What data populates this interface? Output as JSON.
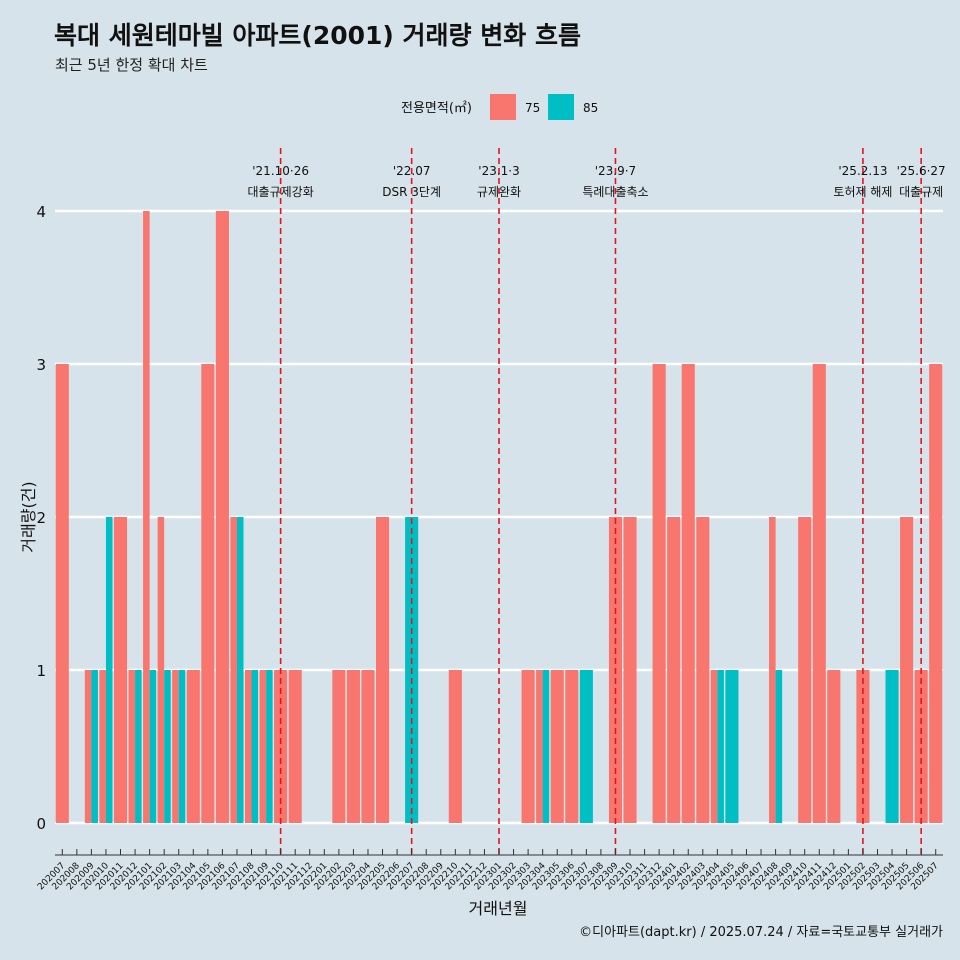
{
  "title": "복대 세원테마빌 아파트(2001) 거래량 변화 흐름",
  "subtitle": "최근 5년 한정 확대 차트",
  "caption": "©디아파트(dapt.kr) / 2025.07.24 / 자료=국토교통부 실거래가",
  "colors": {
    "background": "#d6e3ea",
    "s75": "#f8766d",
    "s85": "#00bfc4",
    "event_line": "#e8141c",
    "grid": "#ffffff"
  },
  "chart_data": {
    "type": "bar",
    "xlabel": "거래년월",
    "ylabel": "거래량(건)",
    "ylim": [
      0,
      4
    ],
    "yticks": [
      0,
      1,
      2,
      3,
      4
    ],
    "legend": {
      "title": "전용면적(㎡)",
      "position": "top"
    },
    "categories": [
      "202007",
      "202008",
      "202009",
      "202010",
      "202011",
      "202012",
      "202101",
      "202102",
      "202103",
      "202104",
      "202105",
      "202106",
      "202107",
      "202108",
      "202109",
      "202110",
      "202111",
      "202112",
      "202201",
      "202202",
      "202203",
      "202204",
      "202205",
      "202206",
      "202207",
      "202208",
      "202209",
      "202210",
      "202211",
      "202212",
      "202301",
      "202302",
      "202303",
      "202304",
      "202305",
      "202306",
      "202307",
      "202308",
      "202309",
      "202310",
      "202311",
      "202312",
      "202401",
      "202402",
      "202403",
      "202404",
      "202405",
      "202406",
      "202407",
      "202408",
      "202409",
      "202410",
      "202411",
      "202412",
      "202501",
      "202502",
      "202503",
      "202504",
      "202505",
      "202506",
      "202507"
    ],
    "series": [
      {
        "name": "75",
        "values": [
          3,
          0,
          1,
          1,
          2,
          1,
          4,
          2,
          1,
          1,
          3,
          4,
          2,
          1,
          1,
          1,
          1,
          0,
          0,
          1,
          1,
          1,
          2,
          0,
          0,
          0,
          0,
          1,
          0,
          0,
          0,
          0,
          1,
          1,
          1,
          1,
          0,
          0,
          2,
          2,
          0,
          3,
          2,
          3,
          2,
          1,
          0,
          0,
          0,
          2,
          0,
          2,
          3,
          1,
          0,
          1,
          0,
          0,
          2,
          1,
          3
        ]
      },
      {
        "name": "85",
        "values": [
          0,
          0,
          1,
          2,
          0,
          1,
          1,
          1,
          1,
          0,
          0,
          0,
          2,
          1,
          1,
          0,
          0,
          0,
          0,
          0,
          0,
          0,
          0,
          0,
          2,
          0,
          0,
          0,
          0,
          0,
          0,
          0,
          0,
          1,
          0,
          0,
          1,
          0,
          0,
          0,
          0,
          0,
          0,
          0,
          0,
          1,
          1,
          0,
          0,
          1,
          0,
          0,
          0,
          0,
          0,
          0,
          0,
          1,
          0,
          0,
          0
        ]
      }
    ],
    "events": [
      {
        "month": "202110",
        "date": "'21.10·26",
        "label": "대출규제강화"
      },
      {
        "month": "202207",
        "date": "'22.07",
        "label": "DSR 3단계"
      },
      {
        "month": "202301",
        "date": "'23.1·3",
        "label": "규제완화"
      },
      {
        "month": "202309",
        "date": "'23.9·7",
        "label": "특례대출축소"
      },
      {
        "month": "202502",
        "date": "'25.2.13",
        "label": "토허제 해제"
      },
      {
        "month": "202506",
        "date": "'25.6·27",
        "label": "대출규제"
      }
    ],
    "grid": true
  }
}
